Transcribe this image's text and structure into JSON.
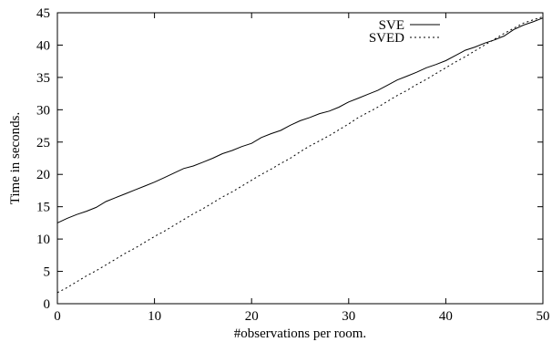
{
  "chart_data": {
    "type": "line",
    "title": "",
    "xlabel": "#observations per room.",
    "ylabel": "Time in seconds.",
    "xlim": [
      0,
      50
    ],
    "ylim": [
      0,
      45
    ],
    "xticks": [
      0,
      10,
      20,
      30,
      40,
      50
    ],
    "yticks": [
      0,
      5,
      10,
      15,
      20,
      25,
      30,
      35,
      40,
      45
    ],
    "grid": false,
    "legend_position": "top-right",
    "series": [
      {
        "name": "SVE",
        "line_style": "solid",
        "x": [
          0,
          1,
          2,
          3,
          4,
          5,
          6,
          7,
          8,
          9,
          10,
          11,
          12,
          13,
          14,
          15,
          16,
          17,
          18,
          19,
          20,
          21,
          22,
          23,
          24,
          25,
          26,
          27,
          28,
          29,
          30,
          31,
          32,
          33,
          34,
          35,
          36,
          37,
          38,
          39,
          40,
          41,
          42,
          43,
          44,
          45,
          46,
          47,
          48,
          49,
          50
        ],
        "y": [
          12.5,
          13.2,
          13.8,
          14.3,
          14.9,
          15.8,
          16.4,
          17.0,
          17.6,
          18.2,
          18.8,
          19.5,
          20.2,
          20.9,
          21.3,
          21.9,
          22.5,
          23.2,
          23.7,
          24.3,
          24.8,
          25.7,
          26.3,
          26.8,
          27.6,
          28.3,
          28.8,
          29.4,
          29.8,
          30.4,
          31.2,
          31.8,
          32.4,
          33.0,
          33.8,
          34.6,
          35.2,
          35.8,
          36.5,
          37.0,
          37.6,
          38.4,
          39.2,
          39.7,
          40.3,
          40.8,
          41.4,
          42.4,
          43.1,
          43.6,
          44.2
        ]
      },
      {
        "name": "SVED",
        "line_style": "dotted",
        "x": [
          0,
          1,
          2,
          3,
          4,
          5,
          6,
          7,
          8,
          9,
          10,
          11,
          12,
          13,
          14,
          15,
          16,
          17,
          18,
          19,
          20,
          21,
          22,
          23,
          24,
          25,
          26,
          27,
          28,
          29,
          30,
          31,
          32,
          33,
          34,
          35,
          36,
          37,
          38,
          39,
          40,
          41,
          42,
          43,
          44,
          45,
          46,
          47,
          48,
          49,
          50
        ],
        "y": [
          1.7,
          2.5,
          3.4,
          4.3,
          5.1,
          6.0,
          6.9,
          7.8,
          8.6,
          9.5,
          10.4,
          11.2,
          12.1,
          13.0,
          13.9,
          14.7,
          15.6,
          16.5,
          17.3,
          18.2,
          19.1,
          20.0,
          20.8,
          21.7,
          22.5,
          23.5,
          24.4,
          25.2,
          26.0,
          26.9,
          27.8,
          28.8,
          29.6,
          30.4,
          31.3,
          32.2,
          33.0,
          33.9,
          34.7,
          35.6,
          36.5,
          37.4,
          38.2,
          39.1,
          40.0,
          40.9,
          41.8,
          42.6,
          43.4,
          43.9,
          44.4
        ]
      }
    ]
  }
}
